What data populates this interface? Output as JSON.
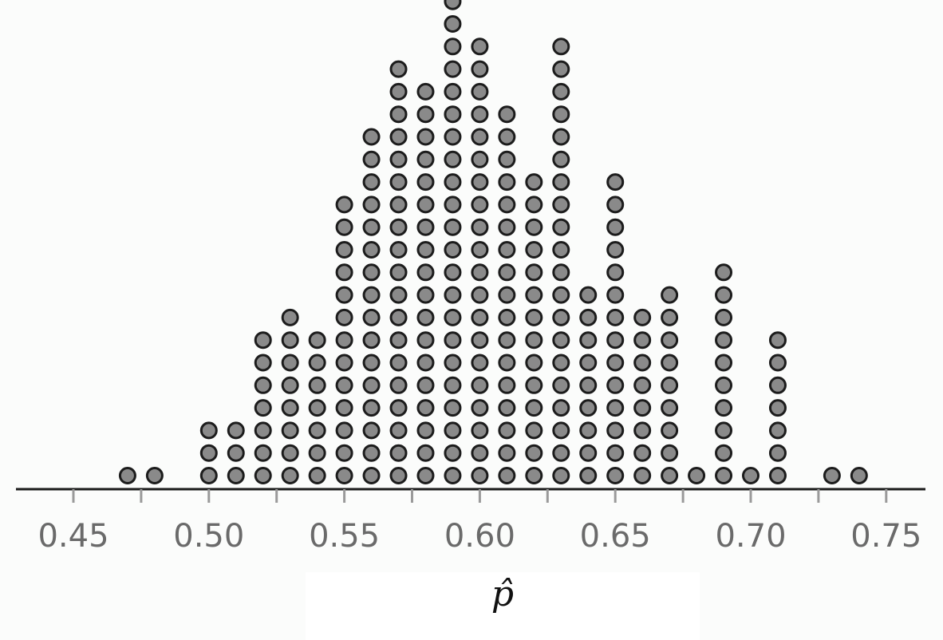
{
  "chart_data": {
    "type": "dotplot",
    "title": "",
    "xlabel": "p̂",
    "ylabel": "",
    "xlim": [
      0.43,
      0.77
    ],
    "grid": false,
    "x_ticks": [
      0.45,
      0.5,
      0.55,
      0.6,
      0.65,
      0.7,
      0.75
    ],
    "tick_labels": [
      "0.45",
      "0.50",
      "0.55",
      "0.60",
      "0.65",
      "0.70",
      "0.75"
    ],
    "x": [
      0.47,
      0.48,
      0.5,
      0.51,
      0.52,
      0.53,
      0.54,
      0.55,
      0.56,
      0.57,
      0.58,
      0.59,
      0.6,
      0.61,
      0.62,
      0.63,
      0.64,
      0.65,
      0.66,
      0.67,
      0.68,
      0.69,
      0.7,
      0.71,
      0.73,
      0.74
    ],
    "counts": [
      1,
      1,
      3,
      3,
      7,
      8,
      7,
      13,
      16,
      19,
      18,
      22,
      20,
      17,
      14,
      20,
      9,
      14,
      8,
      9,
      1,
      10,
      1,
      7,
      1,
      1
    ]
  },
  "colors": {
    "dot_fill": "#8a8a8a",
    "dot_stroke": "#1c1c1c",
    "axis": "#1a1a1a",
    "tick_label": "#6a6a6a",
    "background": "#fbfcfb"
  }
}
